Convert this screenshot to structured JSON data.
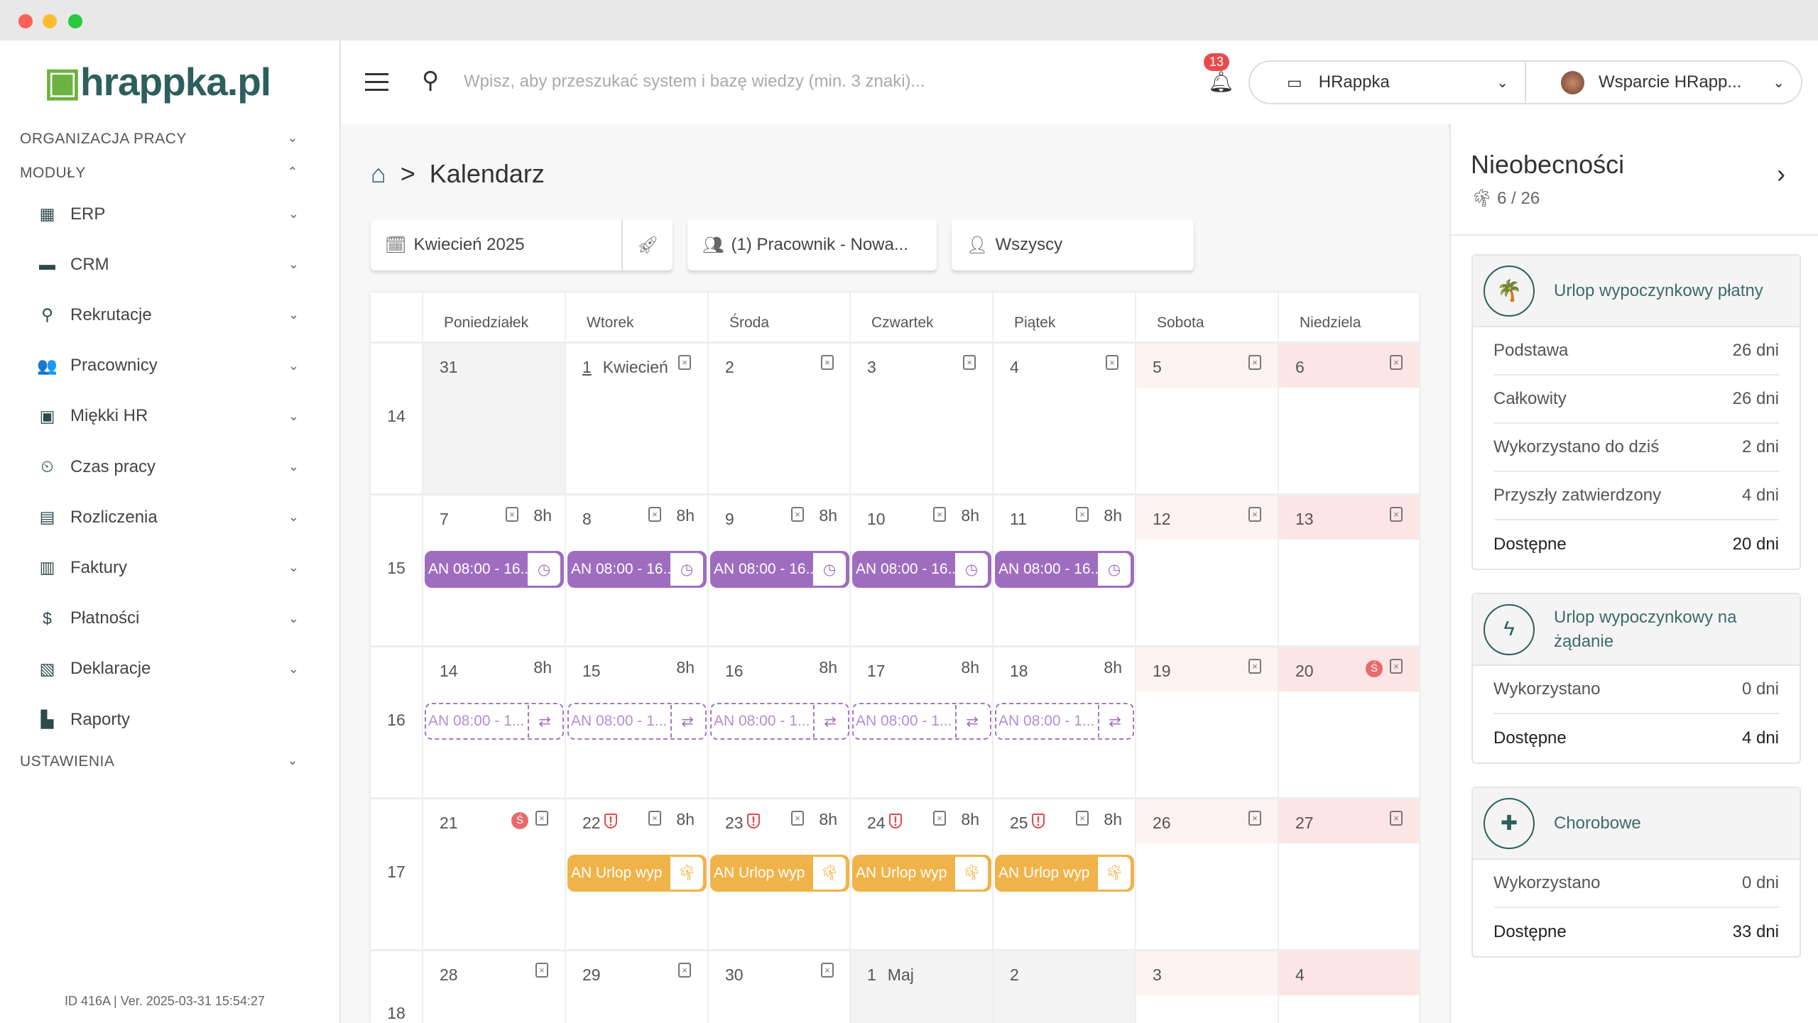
{
  "app": {
    "logo": "hrappka.pl",
    "version": "ID 416A | Ver. 2025-03-31 15:54:27"
  },
  "sidebar": {
    "sections": {
      "org": "ORGANIZACJA PRACY",
      "modules": "MODUŁY",
      "settings": "USTAWIENIA"
    },
    "items": [
      {
        "label": "ERP",
        "icon": "building-icon",
        "glyph": "▦"
      },
      {
        "label": "CRM",
        "icon": "briefcase-icon",
        "glyph": "▬"
      },
      {
        "label": "Rekrutacje",
        "icon": "search-icon",
        "glyph": "⚲"
      },
      {
        "label": "Pracownicy",
        "icon": "users-icon",
        "glyph": "👥"
      },
      {
        "label": "Miękki HR",
        "icon": "presentation-icon",
        "glyph": "▣"
      },
      {
        "label": "Czas pracy",
        "icon": "time-icon",
        "glyph": "⏲"
      },
      {
        "label": "Rozliczenia",
        "icon": "calculator-icon",
        "glyph": "▤"
      },
      {
        "label": "Faktury",
        "icon": "invoice-icon",
        "glyph": "▥"
      },
      {
        "label": "Płatności",
        "icon": "dollar-icon",
        "glyph": "$"
      },
      {
        "label": "Deklaracje",
        "icon": "declaration-icon",
        "glyph": "▧"
      },
      {
        "label": "Raporty",
        "icon": "chart-icon",
        "glyph": "▙"
      }
    ]
  },
  "topbar": {
    "search_placeholder": "Wpisz, aby przeszukać system i bazę wiedzy (min. 3 znaki)...",
    "notifications": "13",
    "company": "HRappka",
    "user": "Wsparcie HRapp..."
  },
  "breadcrumb": {
    "current": "Kalendarz",
    "separator": ">"
  },
  "toolbar": {
    "month": "Kwiecień 2025",
    "employees": "(1) Pracownik - Nowa...",
    "who": "Wszyscy"
  },
  "calendar": {
    "weekdays": [
      "Poniedziałek",
      "Wtorek",
      "Środa",
      "Czwartek",
      "Piątek",
      "Sobota",
      "Niedziela"
    ],
    "weeks": [
      {
        "no": "14",
        "days": [
          {
            "d": "31",
            "muted": true
          },
          {
            "d": "1",
            "label": "Kwiecień",
            "cal": true
          },
          {
            "d": "2",
            "cal": true
          },
          {
            "d": "3",
            "cal": true
          },
          {
            "d": "4",
            "cal": true
          },
          {
            "d": "5",
            "cal": true,
            "we": "sat"
          },
          {
            "d": "6",
            "cal": true,
            "we": "sun"
          }
        ]
      },
      {
        "no": "15",
        "days": [
          {
            "d": "7",
            "cal": true,
            "h": "8h",
            "ev": {
              "k": "solid",
              "t": "AN 08:00 - 16..."
            }
          },
          {
            "d": "8",
            "cal": true,
            "h": "8h",
            "ev": {
              "k": "solid",
              "t": "AN 08:00 - 16..."
            }
          },
          {
            "d": "9",
            "cal": true,
            "h": "8h",
            "ev": {
              "k": "solid",
              "t": "AN 08:00 - 16..."
            }
          },
          {
            "d": "10",
            "cal": true,
            "h": "8h",
            "ev": {
              "k": "solid",
              "t": "AN 08:00 - 16..."
            }
          },
          {
            "d": "11",
            "cal": true,
            "h": "8h",
            "ev": {
              "k": "solid",
              "t": "AN 08:00 - 16..."
            }
          },
          {
            "d": "12",
            "cal": true,
            "we": "sat"
          },
          {
            "d": "13",
            "cal": true,
            "we": "sun"
          }
        ]
      },
      {
        "no": "16",
        "days": [
          {
            "d": "14",
            "h": "8h",
            "ev": {
              "k": "dash",
              "t": "AN 08:00 - 1..."
            }
          },
          {
            "d": "15",
            "h": "8h",
            "ev": {
              "k": "dash",
              "t": "AN 08:00 - 1..."
            }
          },
          {
            "d": "16",
            "h": "8h",
            "ev": {
              "k": "dash",
              "t": "AN 08:00 - 1..."
            }
          },
          {
            "d": "17",
            "h": "8h",
            "ev": {
              "k": "dash",
              "t": "AN 08:00 - 1..."
            }
          },
          {
            "d": "18",
            "h": "8h",
            "ev": {
              "k": "dash",
              "t": "AN 08:00 - 1..."
            }
          },
          {
            "d": "19",
            "cal": true,
            "we": "sat"
          },
          {
            "d": "20",
            "cal": true,
            "we": "sun",
            "s": "Ś"
          }
        ]
      },
      {
        "no": "17",
        "days": [
          {
            "d": "21",
            "cal": true,
            "s": "Ś"
          },
          {
            "d": "22",
            "cal": true,
            "h": "8h",
            "alert": "!",
            "ev": {
              "k": "orange",
              "t": "AN Urlop wyp"
            }
          },
          {
            "d": "23",
            "cal": true,
            "h": "8h",
            "alert": "!",
            "ev": {
              "k": "orange",
              "t": "AN Urlop wyp"
            }
          },
          {
            "d": "24",
            "cal": true,
            "h": "8h",
            "alert": "!",
            "ev": {
              "k": "orange",
              "t": "AN Urlop wyp"
            }
          },
          {
            "d": "25",
            "cal": true,
            "h": "8h",
            "alert": "!",
            "ev": {
              "k": "orange",
              "t": "AN Urlop wyp"
            }
          },
          {
            "d": "26",
            "cal": true,
            "we": "sat"
          },
          {
            "d": "27",
            "cal": true,
            "we": "sun"
          }
        ]
      },
      {
        "no": "18",
        "days": [
          {
            "d": "28",
            "cal": true
          },
          {
            "d": "29",
            "cal": true
          },
          {
            "d": "30",
            "cal": true
          },
          {
            "d": "1",
            "label": "Maj",
            "muted": true
          },
          {
            "d": "2",
            "muted": true
          },
          {
            "d": "3",
            "we": "sat"
          },
          {
            "d": "4",
            "we": "sun"
          }
        ]
      }
    ]
  },
  "absences": {
    "title": "Nieobecności",
    "summary": "6 / 26",
    "cards": [
      {
        "title": "Urlop wypoczynkowy płatny",
        "icon": "palm-tree-icon",
        "glyph": "🌴",
        "rows": [
          {
            "k": "Podstawa",
            "v": "26 dni"
          },
          {
            "k": "Całkowity",
            "v": "26 dni"
          },
          {
            "k": "Wykorzystano do dziś",
            "v": "2 dni"
          },
          {
            "k": "Przyszły zatwierdzony",
            "v": "4 dni"
          },
          {
            "k": "Dostępne",
            "v": "20 dni"
          }
        ]
      },
      {
        "title": "Urlop wypoczynkowy na żądanie",
        "icon": "lightning-icon",
        "glyph": "ϟ",
        "rows": [
          {
            "k": "Wykorzystano",
            "v": "0 dni"
          },
          {
            "k": "Dostępne",
            "v": "4 dni"
          }
        ]
      },
      {
        "title": "Chorobowe",
        "icon": "ambulance-icon",
        "glyph": "✚",
        "rows": [
          {
            "k": "Wykorzystano",
            "v": "0 dni"
          },
          {
            "k": "Dostępne",
            "v": "33 dni"
          }
        ]
      }
    ]
  },
  "colors": {
    "brand": "#2d5f5d",
    "logo_accent": "#6cb33f",
    "event_purple": "#9f6dbf",
    "event_orange": "#f0b34a",
    "sat": "#fdf2f2",
    "sun": "#fce5e5",
    "alert": "#e04b4b"
  }
}
